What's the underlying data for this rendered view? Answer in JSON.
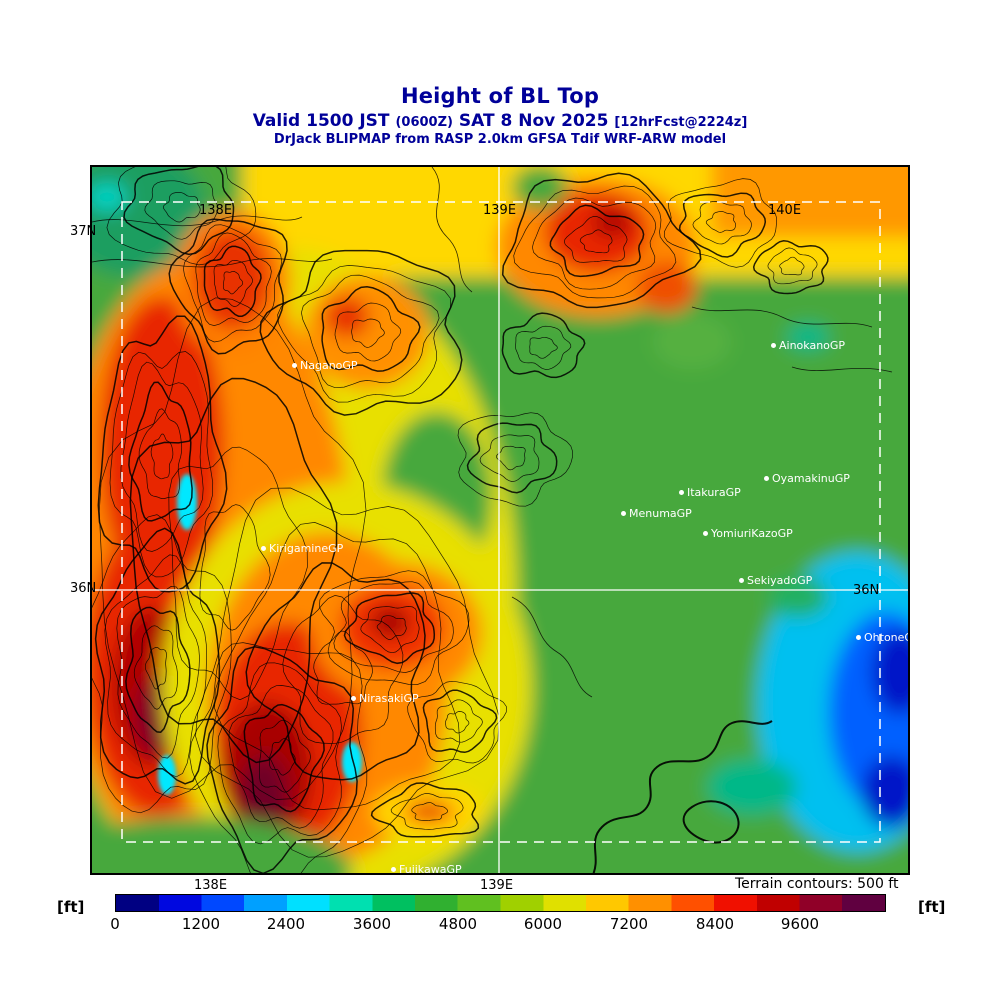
{
  "header": {
    "title": "Height of BL Top",
    "valid_prefix": "Valid 1500 JST",
    "valid_zulu": "(0600Z)",
    "valid_date": "SAT 8 Nov 2025",
    "valid_fcst": "[12hrFcst@2224z]",
    "model_line": "DrJack BLIPMAP from RASP 2.0km GFSA Tdif WRF-ARW model"
  },
  "map": {
    "grid_labels": {
      "top_138e": "138E",
      "top_139e": "139E",
      "top_140e": "140E",
      "left_37n": "37N",
      "left_36n": "36N",
      "right_36n": "36N",
      "bottom_138e": "138E",
      "bottom_139e": "139E"
    },
    "stations": [
      {
        "name": "NaganoGP"
      },
      {
        "name": "AinokanoGP"
      },
      {
        "name": "OyamakinuGP"
      },
      {
        "name": "ItakuraGP"
      },
      {
        "name": "MenumaGP"
      },
      {
        "name": "YomiuriKazoGP"
      },
      {
        "name": "SekiyadoGP"
      },
      {
        "name": "KirigamineGP"
      },
      {
        "name": "OhtoneGP"
      },
      {
        "name": "NirasakiGP"
      },
      {
        "name": "FujikawaGP"
      }
    ],
    "terrain_note": "Terrain contours: 500 ft"
  },
  "colorbar": {
    "unit_left": "[ft]",
    "unit_right": "[ft]",
    "ticks": [
      "0",
      "1200",
      "2400",
      "3600",
      "4800",
      "6000",
      "7200",
      "8400",
      "9600"
    ],
    "colors": [
      "#000082",
      "#0008e0",
      "#0048ff",
      "#00a0ff",
      "#00e0ff",
      "#00e0b0",
      "#00c060",
      "#30b030",
      "#60c020",
      "#a0d000",
      "#e0e000",
      "#ffc800",
      "#ff9000",
      "#ff5000",
      "#f01000",
      "#c00000",
      "#900028",
      "#600040"
    ]
  },
  "chart_data": {
    "type": "heatmap",
    "title": "Height of BL Top",
    "units": "ft",
    "valid": "1500 JST (0600Z) SAT 8 Nov 2025",
    "forecast_tag": "12hrFcst@2224z",
    "model": "DrJack BLIPMAP from RASP 2.0km GFSA Tdif WRF-ARW model",
    "colorbar_ticks_ft": [
      0,
      1200,
      2400,
      3600,
      4800,
      6000,
      7200,
      8400,
      9600
    ],
    "terrain_contour_interval": "500 ft",
    "grid_lon": [
      "138E",
      "139E",
      "140E"
    ],
    "grid_lat": [
      "36N",
      "37N"
    ],
    "stations": [
      "NaganoGP",
      "AinokanoGP",
      "OyamakinuGP",
      "ItakuraGP",
      "MenumaGP",
      "YomiuriKazoGP",
      "SekiyadoGP",
      "KirigamineGP",
      "OhtoneGP",
      "NirasakiGP",
      "FujikawaGP"
    ]
  }
}
